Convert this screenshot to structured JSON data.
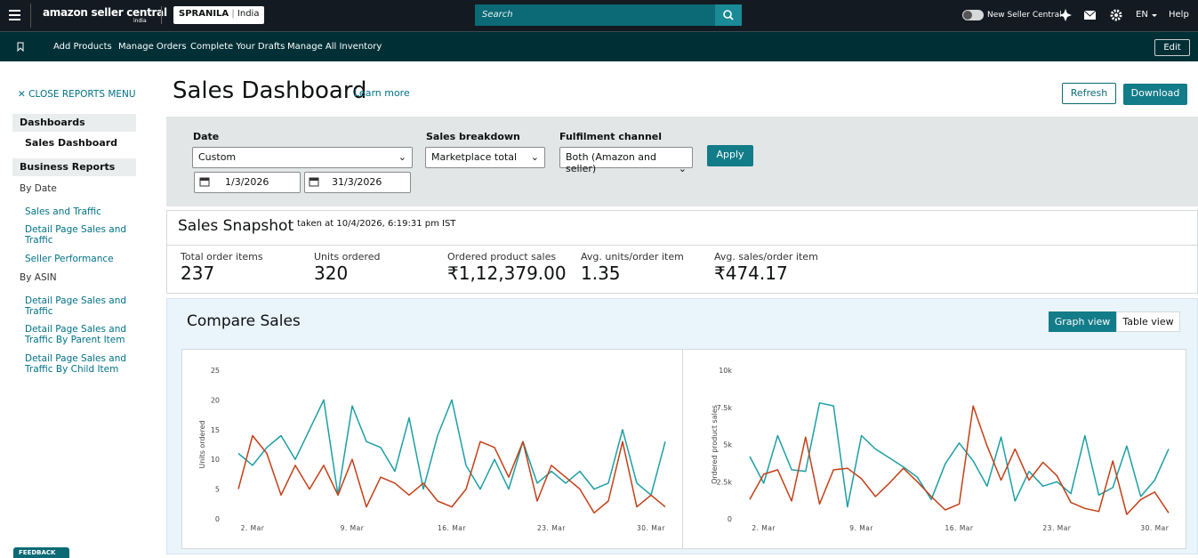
{
  "header": {
    "logo": "amazon seller central",
    "logo_region": "india",
    "account": "SPRANILA",
    "marketplace": "India",
    "search_placeholder": "Search",
    "toggle_label": "New Seller Central",
    "language": "EN",
    "help": "Help"
  },
  "nav": {
    "items": [
      "Add Products",
      "Manage Orders",
      "Complete Your Drafts",
      "Manage All Inventory"
    ],
    "edit": "Edit"
  },
  "sidebar": {
    "close": "CLOSE REPORTS MENU",
    "sections": [
      {
        "title": "Dashboards",
        "items": [
          "Sales Dashboard"
        ]
      },
      {
        "title": "Business Reports",
        "groups": [
          {
            "title": "By Date",
            "items": [
              "Sales and Traffic",
              "Detail Page Sales and Traffic",
              "Seller Performance"
            ]
          },
          {
            "title": "By ASIN",
            "items": [
              "Detail Page Sales and Traffic",
              "Detail Page Sales and Traffic By Parent Item",
              "Detail Page Sales and Traffic By Child Item"
            ]
          }
        ]
      }
    ],
    "feedback": "FEEDBACK"
  },
  "page": {
    "title": "Sales Dashboard",
    "learn_more": "Learn more",
    "refresh": "Refresh",
    "download": "Download"
  },
  "filters": {
    "date_label": "Date",
    "date_value": "Custom",
    "start": "1/3/2026",
    "end": "31/3/2026",
    "breakdown_label": "Sales breakdown",
    "breakdown_value": "Marketplace total",
    "channel_label": "Fulfilment channel",
    "channel_value": "Both (Amazon and seller)",
    "apply": "Apply"
  },
  "snapshot": {
    "title": "Sales Snapshot",
    "taken": "taken at 10/4/2026, 6:19:31 pm IST",
    "metrics": [
      {
        "label": "Total order items",
        "value": "237"
      },
      {
        "label": "Units ordered",
        "value": "320"
      },
      {
        "label": "Ordered product sales",
        "value": "₹1,12,379.00"
      },
      {
        "label": "Avg. units/order item",
        "value": "1.35"
      },
      {
        "label": "Avg. sales/order item",
        "value": "₹474.17"
      }
    ]
  },
  "compare": {
    "title": "Compare Sales",
    "graph_view": "Graph view",
    "table_view": "Table view"
  },
  "chart_data": [
    {
      "type": "line",
      "y_label": "Units ordered",
      "categories": [
        null,
        "2. Mar",
        null,
        null,
        null,
        null,
        null,
        null,
        "9. Mar",
        null,
        null,
        null,
        null,
        null,
        null,
        "16. Mar",
        null,
        null,
        null,
        null,
        null,
        null,
        "23. Mar",
        null,
        null,
        null,
        null,
        null,
        null,
        "30. Mar",
        null
      ],
      "ylim": [
        0,
        25
      ],
      "yticks": [
        0,
        5,
        10,
        15,
        20,
        25
      ],
      "series": [
        {
          "color": "#1c9ea5",
          "values": [
            11,
            9,
            12,
            14,
            10,
            15,
            20,
            4,
            19,
            13,
            12,
            8,
            17,
            5,
            14,
            20,
            9,
            5,
            10,
            5,
            13,
            6,
            8,
            6,
            8,
            5,
            6,
            15,
            6,
            4,
            13
          ]
        },
        {
          "color": "#c23f17",
          "values": [
            5,
            14,
            11,
            4,
            9,
            5,
            9,
            4,
            10,
            2,
            7,
            6,
            4,
            6,
            3,
            2,
            5,
            13,
            12,
            7,
            13,
            3,
            9,
            7,
            5,
            1,
            3,
            13,
            2,
            4,
            2
          ]
        }
      ]
    },
    {
      "type": "line",
      "y_label": "Ordered product sales",
      "categories": [
        null,
        "2. Mar",
        null,
        null,
        null,
        null,
        null,
        null,
        "9. Mar",
        null,
        null,
        null,
        null,
        null,
        null,
        "16. Mar",
        null,
        null,
        null,
        null,
        null,
        null,
        "23. Mar",
        null,
        null,
        null,
        null,
        null,
        null,
        "30. Mar",
        null
      ],
      "ylim": [
        0,
        10000
      ],
      "yticks": [
        0,
        {
          "value": 2500,
          "label": "2.5k"
        },
        {
          "value": 5000,
          "label": "5k"
        },
        {
          "value": 7500,
          "label": "7.5k"
        },
        {
          "value": 10000,
          "label": "10k"
        }
      ],
      "series": [
        {
          "color": "#1c9ea5",
          "values": [
            4200,
            2400,
            5600,
            3300,
            3200,
            7800,
            7600,
            800,
            5600,
            4700,
            4100,
            3500,
            2800,
            1300,
            3700,
            5100,
            3900,
            2200,
            5500,
            1200,
            3200,
            2200,
            2500,
            1700,
            5600,
            1600,
            2100,
            4900,
            1500,
            2600,
            4700
          ]
        },
        {
          "color": "#c23f17",
          "values": [
            1300,
            3000,
            3300,
            1200,
            5500,
            1000,
            3300,
            3400,
            2700,
            1500,
            2400,
            3400,
            2500,
            1500,
            600,
            1000,
            7600,
            4900,
            2600,
            4700,
            2600,
            3800,
            2900,
            1100,
            700,
            500,
            3900,
            300,
            1300,
            1800,
            400
          ]
        }
      ]
    }
  ]
}
